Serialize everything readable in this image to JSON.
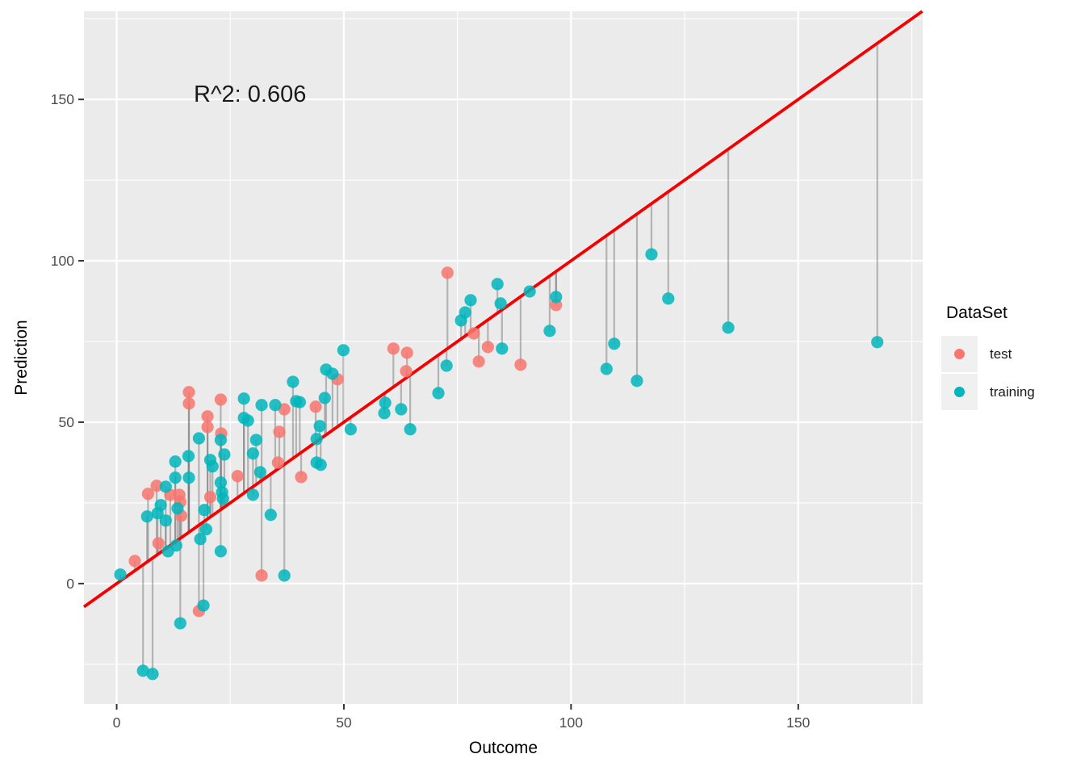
{
  "figure": {
    "background": "#FFFFFF"
  },
  "annotation": {
    "text": "R^2: 0.606"
  },
  "axes": {
    "x_title": "Outcome",
    "y_title": "Prediction",
    "x_tick_labels": [
      "0",
      "50",
      "100",
      "150"
    ],
    "y_tick_labels": [
      "0",
      "50",
      "100",
      "150"
    ]
  },
  "legend": {
    "title": "DataSet",
    "items": [
      {
        "label": "test",
        "color": "#F8766D"
      },
      {
        "label": "training",
        "color": "#00B6BC"
      }
    ]
  },
  "chart_data": {
    "type": "scatter",
    "annotation": "R^2: 0.606",
    "xlabel": "Outcome",
    "ylabel": "Prediction",
    "x_domain": [
      -7.2,
      177.4
    ],
    "y_domain": [
      -37.3,
      177.3
    ],
    "x_major_ticks": [
      0,
      50,
      100,
      150
    ],
    "y_major_ticks": [
      0,
      50,
      100,
      150
    ],
    "x_minor_ticks": [
      25,
      75,
      125,
      175
    ],
    "y_minor_ticks": [
      -25,
      25,
      75,
      125,
      175
    ],
    "panel_background": "#EBEBEB",
    "grid_color": "#FFFFFF",
    "identity_line": {
      "slope": 1,
      "intercept": 0,
      "color": "#F50000"
    },
    "residual_segments": true,
    "segment_color": "#6E6E6E",
    "legend_position": "right",
    "series": [
      {
        "name": "test",
        "color": "#F8766D",
        "points": [
          [
            4.0,
            7.0
          ],
          [
            6.9,
            27.8
          ],
          [
            8.8,
            30.3
          ],
          [
            9.2,
            12.5
          ],
          [
            11.8,
            27.5
          ],
          [
            13.8,
            27.5
          ],
          [
            14.0,
            25.3
          ],
          [
            14.2,
            21.0
          ],
          [
            15.9,
            59.3
          ],
          [
            15.9,
            55.8
          ],
          [
            18.1,
            -8.5
          ],
          [
            20.0,
            51.8
          ],
          [
            20.0,
            48.5
          ],
          [
            20.6,
            26.8
          ],
          [
            22.9,
            57.0
          ],
          [
            23.0,
            46.5
          ],
          [
            26.6,
            33.3
          ],
          [
            31.9,
            2.5
          ],
          [
            35.5,
            37.5
          ],
          [
            35.8,
            47.0
          ],
          [
            36.9,
            54.0
          ],
          [
            40.6,
            33.0
          ],
          [
            43.8,
            54.8
          ],
          [
            48.6,
            63.3
          ],
          [
            60.9,
            72.8
          ],
          [
            63.7,
            65.8
          ],
          [
            63.9,
            71.5
          ],
          [
            72.8,
            96.3
          ],
          [
            78.6,
            77.5
          ],
          [
            79.7,
            68.8
          ],
          [
            81.7,
            73.3
          ],
          [
            88.9,
            67.8
          ],
          [
            96.7,
            86.3
          ]
        ]
      },
      {
        "name": "training",
        "color": "#00B6BC",
        "points": [
          [
            0.8,
            2.8
          ],
          [
            5.8,
            -27.0
          ],
          [
            7.9,
            -28.0
          ],
          [
            6.7,
            20.8
          ],
          [
            9.0,
            21.8
          ],
          [
            9.7,
            24.3
          ],
          [
            10.8,
            30.0
          ],
          [
            10.8,
            19.5
          ],
          [
            11.3,
            10.0
          ],
          [
            12.9,
            37.8
          ],
          [
            12.9,
            32.8
          ],
          [
            13.4,
            23.3
          ],
          [
            13.1,
            11.8
          ],
          [
            14.0,
            -12.3
          ],
          [
            15.8,
            39.5
          ],
          [
            15.9,
            32.8
          ],
          [
            18.1,
            45.0
          ],
          [
            19.1,
            -6.8
          ],
          [
            19.3,
            22.8
          ],
          [
            19.7,
            16.8
          ],
          [
            18.4,
            13.8
          ],
          [
            20.6,
            38.3
          ],
          [
            21.1,
            36.3
          ],
          [
            22.9,
            31.3
          ],
          [
            23.2,
            28.3
          ],
          [
            23.4,
            26.3
          ],
          [
            22.9,
            44.5
          ],
          [
            23.7,
            40.0
          ],
          [
            22.9,
            10.0
          ],
          [
            28.0,
            57.3
          ],
          [
            28.0,
            51.3
          ],
          [
            28.9,
            50.5
          ],
          [
            30.0,
            40.3
          ],
          [
            30.0,
            27.5
          ],
          [
            30.7,
            44.5
          ],
          [
            31.6,
            34.5
          ],
          [
            31.9,
            55.3
          ],
          [
            33.9,
            21.3
          ],
          [
            34.9,
            55.3
          ],
          [
            36.9,
            2.5
          ],
          [
            38.8,
            62.5
          ],
          [
            39.5,
            56.5
          ],
          [
            40.3,
            56.2
          ],
          [
            44.0,
            44.8
          ],
          [
            44.0,
            37.5
          ],
          [
            44.9,
            36.8
          ],
          [
            44.7,
            48.8
          ],
          [
            45.8,
            57.5
          ],
          [
            46.1,
            66.3
          ],
          [
            47.5,
            65.0
          ],
          [
            49.9,
            72.3
          ],
          [
            51.5,
            47.8
          ],
          [
            59.1,
            56.0
          ],
          [
            58.9,
            52.8
          ],
          [
            62.6,
            54.0
          ],
          [
            64.6,
            47.8
          ],
          [
            70.8,
            59.0
          ],
          [
            72.6,
            67.5
          ],
          [
            75.8,
            81.5
          ],
          [
            76.7,
            84.0
          ],
          [
            77.9,
            87.8
          ],
          [
            83.8,
            92.8
          ],
          [
            84.5,
            86.8
          ],
          [
            84.8,
            72.8
          ],
          [
            90.9,
            90.5
          ],
          [
            95.3,
            78.3
          ],
          [
            96.7,
            88.8
          ],
          [
            107.8,
            66.5
          ],
          [
            109.5,
            74.3
          ],
          [
            114.5,
            62.8
          ],
          [
            117.7,
            102.0
          ],
          [
            121.4,
            88.3
          ],
          [
            134.6,
            79.3
          ],
          [
            167.4,
            74.8
          ]
        ]
      }
    ]
  }
}
